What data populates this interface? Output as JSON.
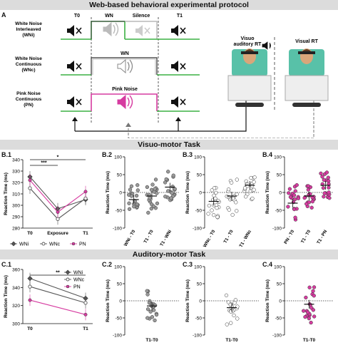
{
  "title": "Web-based behavioral experimental protocol",
  "panel_labels": {
    "a": "A",
    "b1": "B.1",
    "b2": "B.2",
    "b3": "B.3",
    "b4": "B.4",
    "c1": "C.1",
    "c2": "C.2",
    "c3": "C.3",
    "c4": "C.4"
  },
  "protocol": {
    "rows": [
      {
        "name": "White Noise Interleaved (WNi)",
        "line1": "White Noise",
        "line2": "Interleaved",
        "line3": "(WNi)",
        "color": "#3cb043"
      },
      {
        "name": "White Noise Continuous (WNc)",
        "line1": "White Noise",
        "line2": "Continuous",
        "line3": "(WNc)",
        "color": "#3cb043"
      },
      {
        "name": "Pink Noise Continuous (PN)",
        "line1": "Pink Noise",
        "line2": "Continuous",
        "line3": "(PN)",
        "color": "#d63ba0"
      }
    ],
    "t0": "T0",
    "wn": "WN",
    "silence": "Silence",
    "t1": "T1",
    "pink_noise": "Pink Noise",
    "visuo_auditory_rt": "Visuo auditory RT",
    "visual_rt": "Visual RT",
    "va_line1": "Visuo",
    "va_line2": "auditory RT"
  },
  "sections": {
    "visuo_motor": "Visuo-motor Task",
    "auditory_motor": "Auditory-motor Task"
  },
  "chart_data": [
    {
      "id": "B.1",
      "type": "line",
      "ylabel": "Reaction Time (ms)",
      "ylim": [
        280,
        340
      ],
      "yticks": [
        280,
        290,
        300,
        310,
        320,
        330,
        340
      ],
      "categories": [
        "T0",
        "Exposure",
        "T1"
      ],
      "series": [
        {
          "name": "WNi",
          "values": [
            325,
            297,
            305
          ],
          "marker": "diamond",
          "color": "#555555"
        },
        {
          "name": "WNc",
          "values": [
            315,
            288,
            306
          ],
          "marker": "open-circle",
          "color": "#555555"
        },
        {
          "name": "PN",
          "values": [
            322,
            294,
            312
          ],
          "marker": "filled-circle",
          "color": "#d63ba0"
        }
      ],
      "significance": [
        {
          "label": "***",
          "from": "T0",
          "to": "Exposure"
        },
        {
          "label": "*",
          "from": "T0",
          "to": "T1"
        }
      ]
    },
    {
      "id": "B.2",
      "type": "scatter",
      "ylabel": "Reaction Time (ms)",
      "ylim": [
        -100,
        100
      ],
      "yticks": [
        -100,
        -50,
        0,
        50,
        100
      ],
      "categories": [
        "WNi - T0",
        "T1 - T0",
        "T1 - WNi"
      ],
      "means": [
        -20,
        -10,
        15
      ],
      "color": "#999999"
    },
    {
      "id": "B.3",
      "type": "scatter",
      "ylabel": "Reaction Time (ms)",
      "ylim": [
        -100,
        100
      ],
      "yticks": [
        -100,
        -50,
        0,
        50,
        100
      ],
      "categories": [
        "WNc - T0",
        "T1 - T0",
        "T1 - WNc"
      ],
      "means": [
        -25,
        -10,
        20
      ],
      "color": "#ffffff"
    },
    {
      "id": "B.4",
      "type": "scatter",
      "ylabel": "Reaction Time (ms)",
      "ylim": [
        -100,
        100
      ],
      "yticks": [
        -100,
        -50,
        0,
        50,
        100
      ],
      "categories": [
        "PN - T0",
        "T1 - T0",
        "T1 - PN"
      ],
      "means": [
        -30,
        -10,
        20
      ],
      "color": "#d63ba0"
    },
    {
      "id": "C.1",
      "type": "line",
      "ylabel": "Reaction Time (ms)",
      "ylim": [
        300,
        360
      ],
      "yticks": [
        300,
        320,
        340,
        360
      ],
      "categories": [
        "T0",
        "T1"
      ],
      "series": [
        {
          "name": "WNi",
          "values": [
            350,
            328
          ],
          "marker": "diamond",
          "color": "#555555"
        },
        {
          "name": "WNc",
          "values": [
            341,
            323
          ],
          "marker": "open-circle",
          "color": "#555555"
        },
        {
          "name": "PN",
          "values": [
            326,
            310
          ],
          "marker": "filled-circle",
          "color": "#d63ba0"
        }
      ],
      "significance": [
        {
          "label": "**",
          "from": "T0",
          "to": "T1"
        }
      ]
    },
    {
      "id": "C.2",
      "type": "scatter",
      "ylabel": "Reaction Time (ms)",
      "ylim": [
        -100,
        100
      ],
      "yticks": [
        -100,
        -50,
        0,
        50,
        100
      ],
      "categories": [
        "T1-T0"
      ],
      "means": [
        -15
      ],
      "color": "#999999"
    },
    {
      "id": "C.3",
      "type": "scatter",
      "ylabel": "Reaction Time (ms)",
      "ylim": [
        -100,
        100
      ],
      "yticks": [
        -100,
        -50,
        0,
        50,
        100
      ],
      "categories": [
        "T1-T0"
      ],
      "means": [
        -20
      ],
      "color": "#ffffff"
    },
    {
      "id": "C.4",
      "type": "scatter",
      "ylabel": "Reaction Time (ms)",
      "ylim": [
        -100,
        100
      ],
      "yticks": [
        -100,
        -50,
        0,
        50,
        100
      ],
      "categories": [
        "T1-T0"
      ],
      "means": [
        -10
      ],
      "color": "#d63ba0"
    }
  ]
}
